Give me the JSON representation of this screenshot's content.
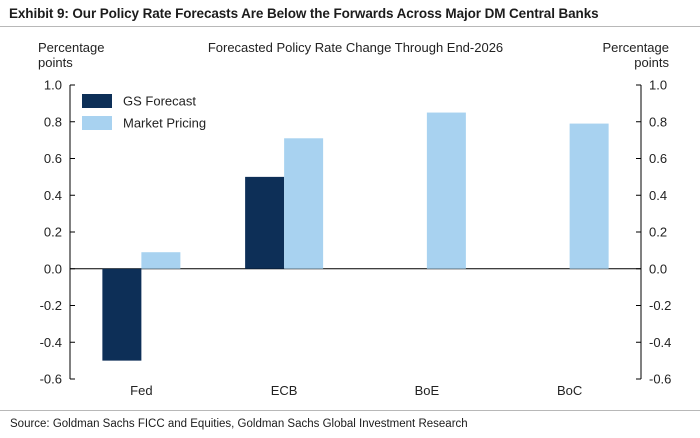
{
  "exhibit": {
    "title": "Exhibit 9: Our Policy Rate Forecasts Are Below the Forwards Across Major DM Central Banks",
    "source": "Source: Goldman Sachs FICC and Equities, Goldman Sachs Global Investment Research"
  },
  "colors": {
    "gs_forecast": "#0d2f57",
    "market_pricing": "#a8d2f0",
    "axis": "#000000"
  },
  "chart_data": {
    "type": "bar",
    "title": "Forecasted Policy Rate Change Through End-2026",
    "ylabel_left": [
      "Percentage",
      "points"
    ],
    "ylabel_right": [
      "Percentage",
      "points"
    ],
    "xlabel": "",
    "ylim": [
      -0.6,
      1.0
    ],
    "yticks": [
      -0.6,
      -0.4,
      -0.2,
      0.0,
      0.2,
      0.4,
      0.6,
      0.8,
      1.0
    ],
    "ytick_labels": [
      "-0.6",
      "-0.4",
      "-0.2",
      "0.0",
      "0.2",
      "0.4",
      "0.6",
      "0.8",
      "1.0"
    ],
    "categories": [
      "Fed",
      "ECB",
      "BoE",
      "BoC"
    ],
    "series": [
      {
        "name": "GS Forecast",
        "values": [
          -0.5,
          0.5,
          null,
          null
        ]
      },
      {
        "name": "Market Pricing",
        "values": [
          0.09,
          0.71,
          0.85,
          0.79
        ]
      }
    ],
    "legend_position": "top-left",
    "grid": false
  }
}
